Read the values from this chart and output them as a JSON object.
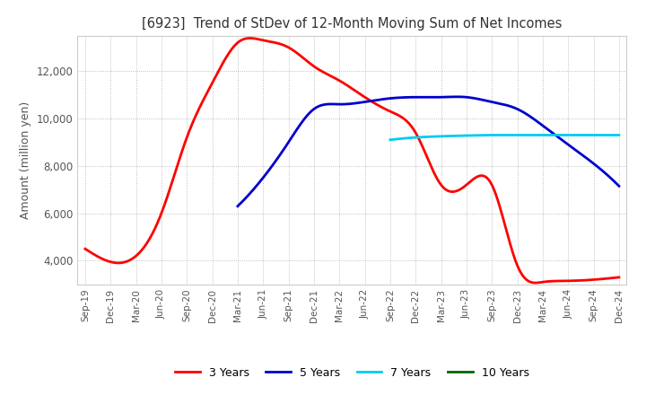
{
  "title": "[6923]  Trend of StDev of 12-Month Moving Sum of Net Incomes",
  "ylabel": "Amount (million yen)",
  "legend": [
    "3 Years",
    "5 Years",
    "7 Years",
    "10 Years"
  ],
  "colors": [
    "#ff0000",
    "#0000cd",
    "#00ccee",
    "#006600"
  ],
  "x_labels": [
    "Sep-19",
    "Dec-19",
    "Mar-20",
    "Jun-20",
    "Sep-20",
    "Dec-20",
    "Mar-21",
    "Jun-21",
    "Sep-21",
    "Dec-21",
    "Mar-22",
    "Jun-22",
    "Sep-22",
    "Dec-22",
    "Mar-23",
    "Jun-23",
    "Sep-23",
    "Dec-23",
    "Mar-24",
    "Jun-24",
    "Sep-24",
    "Dec-24"
  ],
  "ylim": [
    3000,
    13500
  ],
  "yticks": [
    4000,
    6000,
    8000,
    10000,
    12000
  ],
  "series": {
    "3y": [
      4500,
      3950,
      4200,
      6000,
      9200,
      11500,
      13200,
      13300,
      13000,
      12200,
      11600,
      10900,
      10300,
      9400,
      7200,
      7200,
      7200,
      3800,
      3100,
      3150,
      3200,
      3300
    ],
    "5y": [
      null,
      null,
      null,
      null,
      null,
      null,
      6300,
      7500,
      9000,
      10400,
      10600,
      10700,
      10850,
      10900,
      10900,
      10900,
      10700,
      10400,
      9700,
      8900,
      8100,
      7150
    ],
    "7y": [
      null,
      null,
      null,
      null,
      null,
      null,
      null,
      null,
      null,
      null,
      null,
      null,
      9100,
      9200,
      9250,
      9280,
      9300,
      9300,
      9300,
      9300,
      9300,
      9300
    ],
    "10y": [
      null,
      null,
      null,
      null,
      null,
      null,
      null,
      null,
      null,
      null,
      null,
      null,
      null,
      null,
      null,
      null,
      null,
      null,
      null,
      null,
      null,
      null
    ]
  }
}
